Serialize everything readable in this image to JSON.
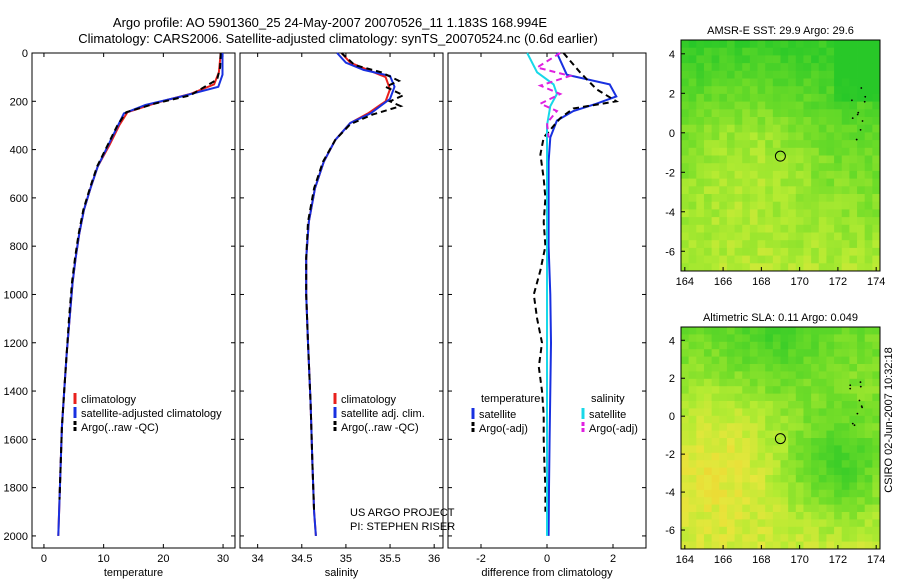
{
  "title_line1": "Argo profile: AO 5901360_25 24-May-2007 20070526_11 1.183S 168.994E",
  "title_line2": "Climatology: CARS2006. Satellite-adjusted climatology: synTS_20070524.nc (0.6d earlier)",
  "footer_credit": "CSIRO 02-Jun-2007 10:32:18",
  "project_line1": "US ARGO PROJECT",
  "project_line2": "PI: STEPHEN RISER",
  "colors": {
    "climatology": "#e8201c",
    "satellite": "#1830e0",
    "argo": "#000000",
    "satellite_diff": "#18d8e8",
    "argo_diff_salinity": "#e020e0"
  },
  "chart_data": [
    {
      "type": "line",
      "id": "temperature",
      "xlabel": "temperature",
      "ylabel": "",
      "xlim": [
        -2,
        32
      ],
      "ylim": [
        2050,
        0
      ],
      "xticks": [
        0,
        10,
        20,
        30
      ],
      "yticks": [
        0,
        200,
        400,
        600,
        800,
        1000,
        1200,
        1400,
        1600,
        1800,
        2000
      ],
      "legend": [
        "climatology",
        "satellite-adjusted climatology",
        "Argo(..raw -QC)"
      ],
      "series": [
        {
          "name": "climatology",
          "color": "#e8201c",
          "dash": "",
          "points": [
            [
              29.6,
              0
            ],
            [
              29.3,
              80
            ],
            [
              28.5,
              130
            ],
            [
              24.5,
              170
            ],
            [
              19,
              205
            ],
            [
              14,
              245
            ],
            [
              12.6,
              300
            ],
            [
              11,
              380
            ],
            [
              9,
              470
            ],
            [
              7.8,
              560
            ],
            [
              6.7,
              650
            ],
            [
              5.9,
              750
            ],
            [
              5.3,
              850
            ],
            [
              4.8,
              950
            ],
            [
              4.3,
              1100
            ],
            [
              3.8,
              1250
            ],
            [
              3.4,
              1400
            ],
            [
              3.0,
              1550
            ],
            [
              2.8,
              1700
            ],
            [
              2.6,
              1850
            ],
            [
              2.4,
              2000
            ]
          ]
        },
        {
          "name": "satellite-adjusted climatology",
          "color": "#1830e0",
          "dash": "",
          "points": [
            [
              29.9,
              0
            ],
            [
              29.9,
              90
            ],
            [
              29.2,
              140
            ],
            [
              23,
              180
            ],
            [
              17,
              215
            ],
            [
              13.4,
              250
            ],
            [
              12.4,
              300
            ],
            [
              10.8,
              380
            ],
            [
              9,
              470
            ],
            [
              7.8,
              560
            ],
            [
              6.7,
              650
            ],
            [
              5.9,
              750
            ],
            [
              5.3,
              850
            ],
            [
              4.8,
              950
            ],
            [
              4.3,
              1100
            ],
            [
              3.8,
              1250
            ],
            [
              3.4,
              1400
            ],
            [
              3.0,
              1550
            ],
            [
              2.8,
              1700
            ],
            [
              2.6,
              1850
            ],
            [
              2.4,
              2000
            ]
          ]
        },
        {
          "name": "Argo(..raw -QC)",
          "color": "#000000",
          "dash": "6,4",
          "points": [
            [
              29.6,
              0
            ],
            [
              29.5,
              60
            ],
            [
              29,
              110
            ],
            [
              24.5,
              175
            ],
            [
              18.5,
              210
            ],
            [
              13.8,
              245
            ],
            [
              12.3,
              300
            ],
            [
              10.7,
              380
            ],
            [
              8.9,
              470
            ],
            [
              7.7,
              560
            ],
            [
              6.6,
              650
            ],
            [
              5.8,
              750
            ],
            [
              5.2,
              850
            ],
            [
              4.7,
              950
            ],
            [
              4.2,
              1100
            ],
            [
              3.8,
              1250
            ],
            [
              3.4,
              1400
            ],
            [
              3.0,
              1550
            ],
            [
              2.8,
              1700
            ],
            [
              2.6,
              1850
            ]
          ]
        }
      ]
    },
    {
      "type": "line",
      "id": "salinity",
      "xlabel": "salinity",
      "xlim": [
        33.8,
        36.1
      ],
      "ylim": [
        2050,
        0
      ],
      "xticks": [
        34,
        34.5,
        35,
        35.5,
        36
      ],
      "legend": [
        "climatology",
        "satellite adj. clim.",
        "Argo(..raw -QC)"
      ],
      "series": [
        {
          "name": "climatology",
          "color": "#e8201c",
          "dash": "",
          "points": [
            [
              34.95,
              0
            ],
            [
              35.05,
              40
            ],
            [
              35.25,
              70
            ],
            [
              35.45,
              100
            ],
            [
              35.5,
              150
            ],
            [
              35.45,
              200
            ],
            [
              35.25,
              250
            ],
            [
              35.05,
              290
            ],
            [
              34.88,
              360
            ],
            [
              34.75,
              450
            ],
            [
              34.65,
              560
            ],
            [
              34.58,
              700
            ],
            [
              34.55,
              850
            ],
            [
              34.55,
              1000
            ],
            [
              34.57,
              1200
            ],
            [
              34.6,
              1450
            ],
            [
              34.62,
              1700
            ],
            [
              34.64,
              1900
            ],
            [
              34.66,
              2000
            ]
          ]
        },
        {
          "name": "satellite adj. clim.",
          "color": "#1830e0",
          "dash": "",
          "points": [
            [
              34.9,
              0
            ],
            [
              35,
              40
            ],
            [
              35.2,
              70
            ],
            [
              35.5,
              95
            ],
            [
              35.55,
              140
            ],
            [
              35.5,
              190
            ],
            [
              35.28,
              250
            ],
            [
              35.05,
              290
            ],
            [
              34.88,
              360
            ],
            [
              34.75,
              450
            ],
            [
              34.65,
              560
            ],
            [
              34.58,
              700
            ],
            [
              34.55,
              850
            ],
            [
              34.55,
              1000
            ],
            [
              34.57,
              1200
            ],
            [
              34.6,
              1450
            ],
            [
              34.62,
              1700
            ],
            [
              34.64,
              1900
            ],
            [
              34.66,
              2000
            ]
          ]
        },
        {
          "name": "Argo(..raw -QC)",
          "color": "#000000",
          "dash": "6,4",
          "points": [
            [
              34.95,
              0
            ],
            [
              35.1,
              50
            ],
            [
              35.4,
              80
            ],
            [
              35.6,
              115
            ],
            [
              35.45,
              140
            ],
            [
              35.65,
              175
            ],
            [
              35.5,
              200
            ],
            [
              35.62,
              220
            ],
            [
              35.3,
              255
            ],
            [
              35.05,
              295
            ],
            [
              34.88,
              360
            ],
            [
              34.74,
              450
            ],
            [
              34.64,
              560
            ],
            [
              34.57,
              700
            ],
            [
              34.55,
              850
            ],
            [
              34.55,
              1000
            ],
            [
              34.57,
              1200
            ],
            [
              34.6,
              1450
            ],
            [
              34.62,
              1700
            ],
            [
              34.64,
              1900
            ]
          ]
        }
      ]
    },
    {
      "type": "line",
      "id": "difference",
      "xlabel": "difference from climatology",
      "xlim": [
        -3,
        3
      ],
      "ylim": [
        2050,
        0
      ],
      "xticks": [
        -2,
        0,
        2
      ],
      "legend_groups": [
        {
          "header": "temperature",
          "items": [
            "satellite",
            "Argo(-adj)"
          ]
        },
        {
          "header": "salinity",
          "items": [
            "satellite",
            "Argo(-adj)"
          ]
        }
      ],
      "series": [
        {
          "name": "temperature satellite",
          "color": "#1830e0",
          "dash": "",
          "points": [
            [
              0.3,
              0
            ],
            [
              0.6,
              90
            ],
            [
              1.9,
              130
            ],
            [
              2.1,
              180
            ],
            [
              1.5,
              210
            ],
            [
              0.8,
              240
            ],
            [
              0.3,
              280
            ],
            [
              0.1,
              350
            ],
            [
              0.05,
              450
            ],
            [
              0.05,
              600
            ],
            [
              0.05,
              800
            ],
            [
              0.1,
              1000
            ],
            [
              0.12,
              1200
            ],
            [
              0.1,
              1400
            ],
            [
              0.08,
              1600
            ],
            [
              0.06,
              1800
            ],
            [
              0.05,
              2000
            ]
          ]
        },
        {
          "name": "temperature Argo(-adj)",
          "color": "#000000",
          "dash": "6,4",
          "points": [
            [
              0.5,
              0
            ],
            [
              1.0,
              80
            ],
            [
              1.5,
              150
            ],
            [
              2.1,
              200
            ],
            [
              0.8,
              230
            ],
            [
              0.4,
              270
            ],
            [
              -0.1,
              350
            ],
            [
              -0.2,
              420
            ],
            [
              -0.1,
              520
            ],
            [
              -0.05,
              600
            ],
            [
              -0.1,
              700
            ],
            [
              -0.05,
              800
            ],
            [
              -0.2,
              900
            ],
            [
              -0.4,
              1000
            ],
            [
              -0.3,
              1100
            ],
            [
              -0.15,
              1200
            ],
            [
              -0.25,
              1300
            ],
            [
              -0.15,
              1400
            ],
            [
              -0.1,
              1500
            ],
            [
              -0.1,
              1600
            ],
            [
              -0.08,
              1700
            ],
            [
              -0.05,
              1800
            ],
            [
              -0.05,
              1900
            ]
          ]
        },
        {
          "name": "salinity satellite",
          "color": "#18d8e8",
          "dash": "",
          "points": [
            [
              -0.6,
              0
            ],
            [
              -0.3,
              80
            ],
            [
              0.2,
              130
            ],
            [
              0.3,
              170
            ],
            [
              0.1,
              220
            ],
            [
              0,
              300
            ],
            [
              0,
              450
            ],
            [
              0,
              700
            ],
            [
              0,
              1000
            ],
            [
              0,
              1500
            ],
            [
              0,
              2000
            ]
          ]
        },
        {
          "name": "salinity Argo(-adj)",
          "color": "#e020e0",
          "dash": "6,4",
          "points": [
            [
              0.4,
              0
            ],
            [
              -0.3,
              60
            ],
            [
              0.7,
              95
            ],
            [
              -0.2,
              135
            ],
            [
              0.4,
              170
            ],
            [
              -0.2,
              210
            ],
            [
              0.3,
              240
            ],
            [
              0,
              290
            ],
            [
              0.05,
              350
            ]
          ]
        }
      ]
    },
    {
      "type": "heatmap",
      "id": "sst",
      "title": "AMSR-E SST: 29.9 Argo: 29.6",
      "xlim": [
        163.8,
        174.2
      ],
      "ylim": [
        -7,
        4.7
      ],
      "xticks": [
        164,
        166,
        168,
        170,
        172,
        174
      ],
      "yticks": [
        -6,
        -4,
        -2,
        0,
        2,
        4
      ],
      "marker": {
        "lon": 168.994,
        "lat": -1.183
      }
    },
    {
      "type": "heatmap",
      "id": "sla",
      "title": "Altimetric SLA: 0.11 Argo: 0.049",
      "xlim": [
        163.8,
        174.2
      ],
      "ylim": [
        -7,
        4.7
      ],
      "xticks": [
        164,
        166,
        168,
        170,
        172,
        174
      ],
      "yticks": [
        -6,
        -4,
        -2,
        0,
        2,
        4
      ],
      "marker": {
        "lon": 168.994,
        "lat": -1.183
      }
    }
  ]
}
